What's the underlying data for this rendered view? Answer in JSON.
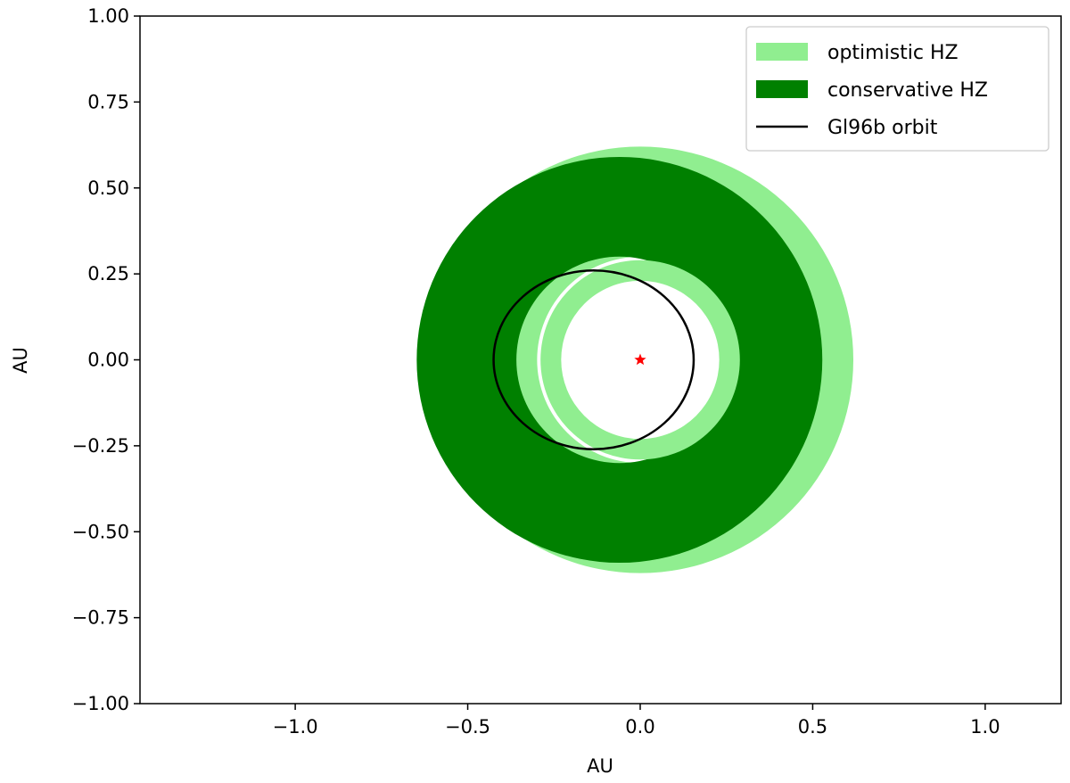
{
  "chart_data": {
    "type": "scatter",
    "title": "",
    "xlabel": "AU",
    "ylabel": "AU",
    "xlim": [
      -1.45,
      1.22
    ],
    "ylim": [
      -1.0,
      1.0
    ],
    "xticks": [
      -1.0,
      -0.5,
      0.0,
      0.5,
      1.0
    ],
    "xtick_labels": [
      "−1.0",
      "−0.5",
      "0.0",
      "0.5",
      "1.0"
    ],
    "yticks": [
      1.0,
      0.75,
      0.5,
      0.25,
      0.0,
      -0.25,
      -0.5,
      -0.75,
      -1.0
    ],
    "ytick_labels": [
      "1.00",
      "0.75",
      "0.50",
      "0.25",
      "0.00",
      "−0.25",
      "−0.50",
      "−0.75",
      "−1.00"
    ],
    "grid": false,
    "legend_position": "top-right",
    "zones": {
      "optimistic": {
        "name": "optimistic HZ",
        "inner_radius": 0.3,
        "outer_radius": 0.62,
        "color": "#90ee90"
      },
      "conservative": {
        "name": "conservative HZ",
        "inner_radius": 0.3,
        "outer_radius": 0.59,
        "center_x": -0.06,
        "center_y": 0.0,
        "color": "#008000"
      },
      "inner_optimistic_ring": {
        "inner_radius": 0.23,
        "outer_radius": 0.29,
        "color": "#90ee90"
      }
    },
    "orbit": {
      "name": "Gl96b orbit",
      "center_x": -0.135,
      "center_y": 0.0,
      "semi_major": 0.29,
      "semi_minor": 0.26,
      "color": "#000000"
    },
    "star": {
      "x": 0.0,
      "y": 0.0,
      "marker": "*",
      "color": "#ff0000"
    }
  }
}
